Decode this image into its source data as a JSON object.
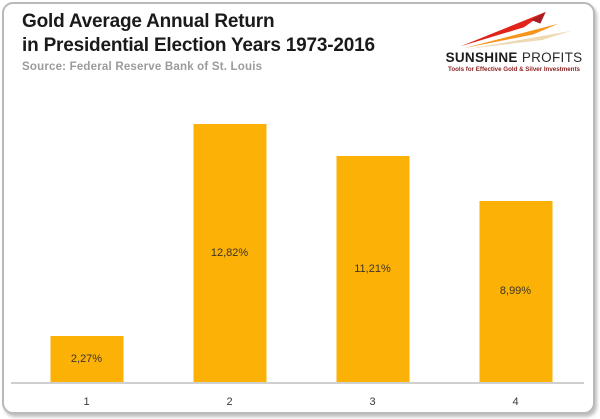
{
  "header": {
    "title_line1": "Gold Average Annual Return",
    "title_line2": "in Presidential Election Years 1973-2016",
    "source": "Source: Federal Reserve Bank of St. Louis"
  },
  "logo": {
    "name_bold": "SUNSHINE",
    "name_light": "PROFITS",
    "tagline": "Tools for Effective Gold & Silver Investments",
    "rays_icon": "three-darts-up-right-icon",
    "colors": {
      "red": "#E2231A",
      "dark_red": "#A41E22",
      "orange": "#F7941D",
      "beige": "#EBD2A8",
      "shadow_gray": "#C9C4BC",
      "tagline": "#8B2323"
    }
  },
  "chart_data": {
    "type": "bar",
    "title": "Gold Average Annual Return in Presidential Election Years 1973-2016",
    "source": "Federal Reserve Bank of St. Louis",
    "categories": [
      "1",
      "2",
      "3",
      "4"
    ],
    "values": [
      2.27,
      12.82,
      11.21,
      8.99
    ],
    "value_labels": [
      "2,27%",
      "12,82%",
      "11,21%",
      "8,99%"
    ],
    "xlabel": "",
    "ylabel": "",
    "ylim": [
      0,
      14
    ],
    "grid": false,
    "legend": false,
    "bar_color": "#FBB106",
    "axis_line_color": "#CFCFCF"
  }
}
